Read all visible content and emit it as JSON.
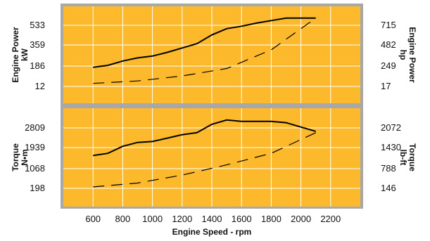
{
  "chart_data": [
    {
      "type": "line",
      "panel": "power",
      "xlabel": "Engine Speed - rpm",
      "ylabel_left": [
        "Engine Power",
        "kW"
      ],
      "ylabel_right": [
        "Engine Power",
        "hp"
      ],
      "left_ticks": [
        "533",
        "359",
        "186",
        "12"
      ],
      "right_ticks": [
        "715",
        "482",
        "249",
        "17"
      ],
      "x_ticks": [
        "600",
        "800",
        "1000",
        "1200",
        "1400",
        "1600",
        "1800",
        "2000",
        "2200"
      ],
      "xlim": [
        400,
        2400
      ],
      "ylim_left": [
        -160,
        620
      ],
      "grid": true,
      "series": [
        {
          "style": "solid",
          "x": [
            600,
            700,
            800,
            900,
            1000,
            1100,
            1200,
            1300,
            1400,
            1500,
            1600,
            1700,
            1800,
            1900,
            2000,
            2100
          ],
          "y": [
            130,
            145,
            180,
            205,
            220,
            250,
            285,
            320,
            390,
            440,
            460,
            485,
            505,
            525,
            525,
            525
          ]
        },
        {
          "style": "dashed",
          "x": [
            600,
            900,
            1200,
            1500,
            1800,
            2100
          ],
          "y": [
            0,
            20,
            60,
            120,
            270,
            525
          ]
        }
      ]
    },
    {
      "type": "line",
      "panel": "torque",
      "xlabel": "Engine Speed - rpm",
      "ylabel_left": [
        "Torque",
        "N•m"
      ],
      "ylabel_right": [
        "Torque",
        "lb-ft"
      ],
      "left_ticks": [
        "2809",
        "1939",
        "1068",
        "198"
      ],
      "right_ticks": [
        "2072",
        "1430",
        "788",
        "146"
      ],
      "x_ticks": [
        "600",
        "800",
        "1000",
        "1200",
        "1400",
        "1600",
        "1800",
        "2000",
        "2200"
      ],
      "xlim": [
        400,
        2400
      ],
      "ylim_left": [
        -670,
        3670
      ],
      "grid": true,
      "series": [
        {
          "style": "solid",
          "x": [
            600,
            700,
            800,
            900,
            1000,
            1100,
            1200,
            1300,
            1400,
            1500,
            1600,
            1700,
            1800,
            1900,
            2000,
            2100
          ],
          "y": [
            1580,
            1680,
            1990,
            2160,
            2200,
            2350,
            2500,
            2590,
            2960,
            3150,
            3090,
            3090,
            3090,
            3030,
            2840,
            2650
          ]
        },
        {
          "style": "dashed",
          "x": [
            600,
            900,
            1200,
            1500,
            1800,
            2100
          ],
          "y": [
            198,
            370,
            720,
            1170,
            1680,
            2590
          ]
        }
      ]
    }
  ]
}
